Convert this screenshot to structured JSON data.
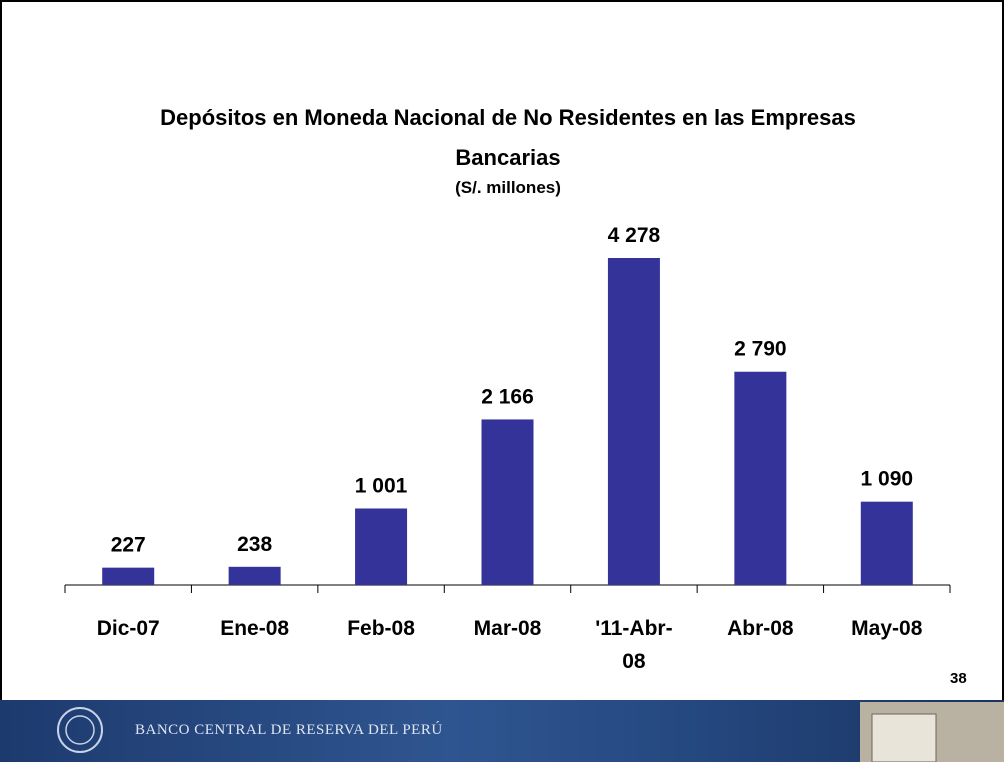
{
  "chart_data": {
    "type": "bar",
    "title": "Depósitos en Moneda Nacional de No Residentes en las Empresas Bancarias",
    "subtitle": "(S/. millones)",
    "categories": [
      "Dic-07",
      "Ene-08",
      "Feb-08",
      "Mar-08",
      "'11-Abr-08",
      "Abr-08",
      "May-08"
    ],
    "values": [
      227,
      238,
      1001,
      2166,
      4278,
      2790,
      1090
    ],
    "value_labels": [
      "227",
      "238",
      "1 001",
      "2 166",
      "4 278",
      "2 790",
      "1 090"
    ],
    "color": "#333399"
  },
  "page_number": "38",
  "footer": "BANCO CENTRAL DE RESERVA DEL PERÚ"
}
